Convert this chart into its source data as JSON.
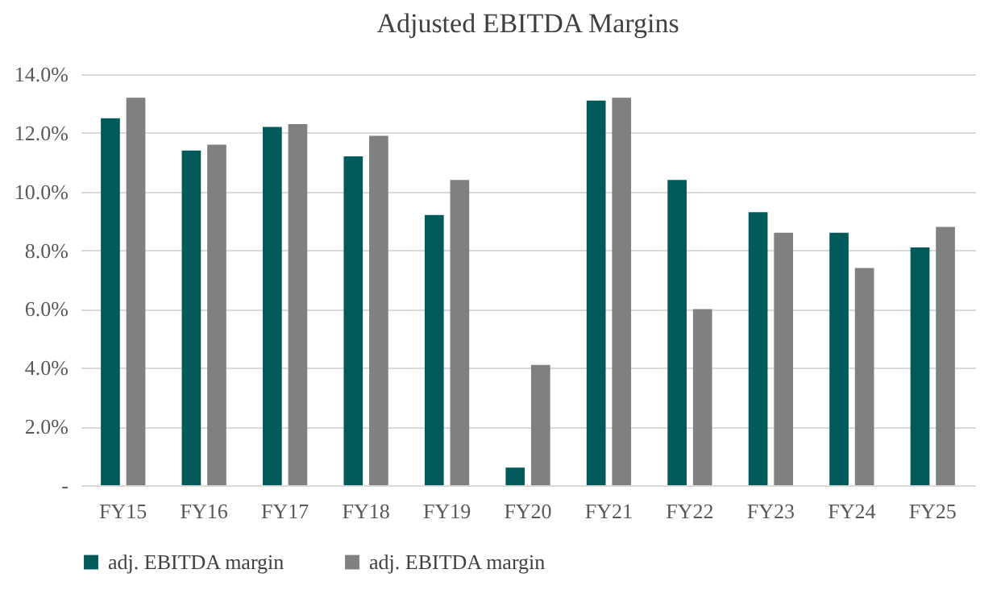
{
  "chart_data": {
    "type": "bar",
    "title": "Adjusted EBITDA Margins",
    "categories": [
      "FY15",
      "FY16",
      "FY17",
      "FY18",
      "FY19",
      "FY20",
      "FY21",
      "FY22",
      "FY23",
      "FY24",
      "FY25"
    ],
    "series": [
      {
        "name": "adj. EBITDA margin",
        "color": "#005a5a",
        "values": [
          12.5,
          11.4,
          12.2,
          11.2,
          9.2,
          0.6,
          13.1,
          10.4,
          9.3,
          8.6,
          8.1
        ]
      },
      {
        "name": "adj. EBITDA margin",
        "color": "#808080",
        "values": [
          13.2,
          11.6,
          12.3,
          11.9,
          10.4,
          4.1,
          13.2,
          6.0,
          8.6,
          7.4,
          8.8
        ]
      }
    ],
    "ylim": [
      0,
      14
    ],
    "yticks": [
      {
        "value": 0,
        "label": "-"
      },
      {
        "value": 2,
        "label": "2.0%"
      },
      {
        "value": 4,
        "label": "4.0%"
      },
      {
        "value": 6,
        "label": "6.0%"
      },
      {
        "value": 8,
        "label": "8.0%"
      },
      {
        "value": 10,
        "label": "10.0%"
      },
      {
        "value": 12,
        "label": "12.0%"
      },
      {
        "value": 14,
        "label": "14.0%"
      }
    ],
    "grid": "y",
    "legend": "bottom"
  }
}
